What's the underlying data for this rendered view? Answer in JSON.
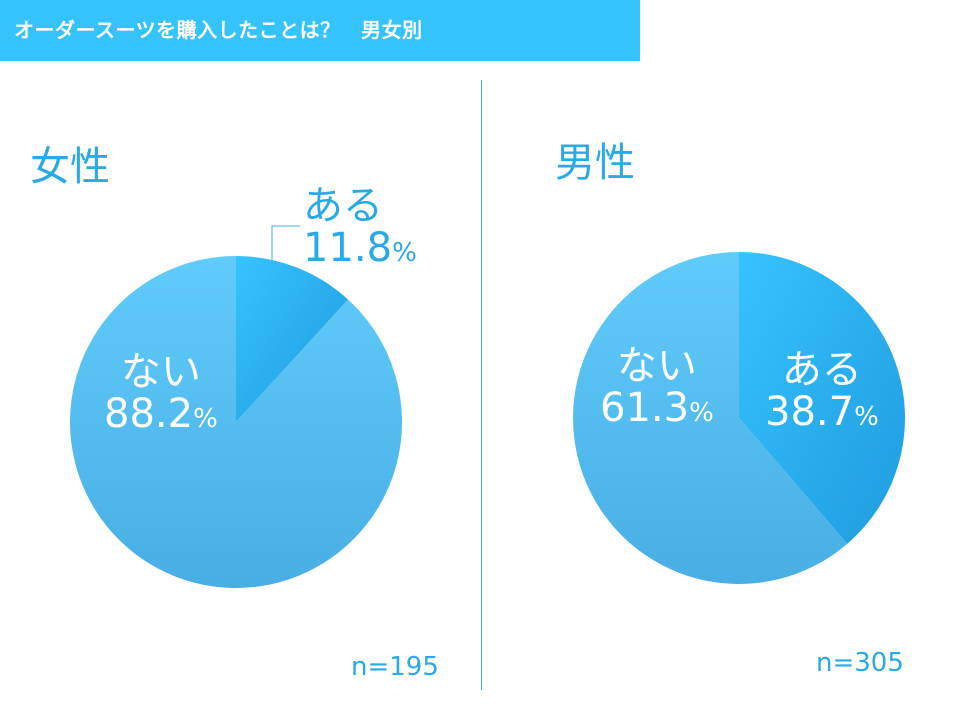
{
  "header": {
    "title": "オーダースーツを購入したことは？　男女別"
  },
  "colors": {
    "header_bg": "#35c3fb",
    "accent_text": "#29a9e6",
    "slice_aru": "#2bb4f2",
    "slice_nai": "#5cc6f5"
  },
  "chart_data": [
    {
      "type": "pie",
      "title": "女性",
      "n_label": "n=195",
      "categories": [
        "ある",
        "ない"
      ],
      "values": [
        11.8,
        88.2
      ],
      "value_labels": [
        "11.8",
        "88.2"
      ],
      "unit": "%"
    },
    {
      "type": "pie",
      "title": "男性",
      "n_label": "n=305",
      "categories": [
        "ある",
        "ない"
      ],
      "values": [
        38.7,
        61.3
      ],
      "value_labels": [
        "38.7",
        "61.3"
      ],
      "unit": "%"
    }
  ]
}
